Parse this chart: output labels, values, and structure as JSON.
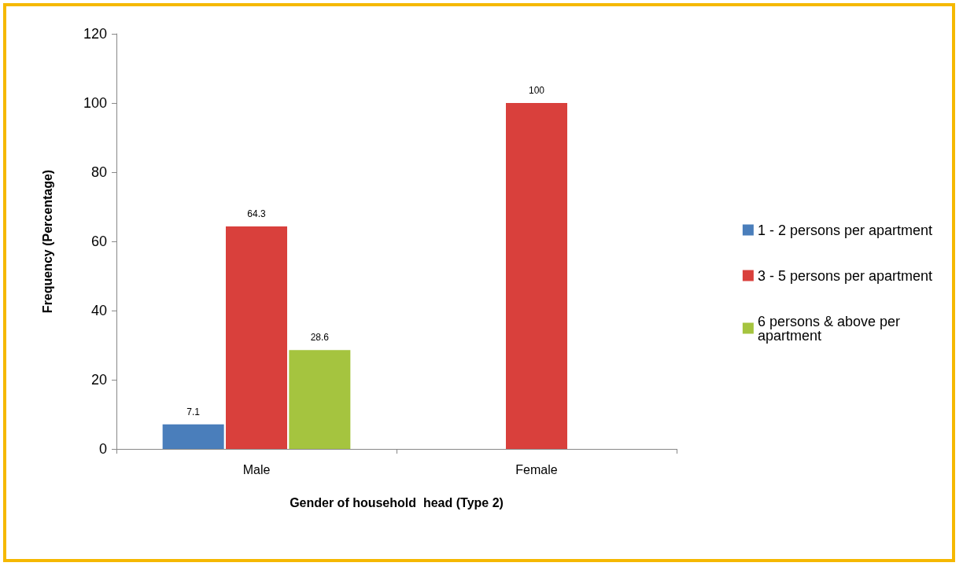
{
  "chart_data": {
    "type": "bar",
    "xlabel": "Gender of household  head (Type 2)",
    "ylabel": "Frequency (Percentage)",
    "categories": [
      "Male",
      "Female"
    ],
    "series": [
      {
        "name": "1 - 2 persons per apartment",
        "color": "#4a7ebb",
        "values": [
          7.1,
          null
        ]
      },
      {
        "name": "3 - 5 persons per apartment",
        "color": "#d9403c",
        "values": [
          64.3,
          100
        ]
      },
      {
        "name": "6 persons & above per apartment",
        "color": "#a5c43f",
        "values": [
          28.6,
          null
        ]
      }
    ],
    "ylim": [
      0,
      120
    ],
    "yticks": [
      0,
      20,
      40,
      60,
      80,
      100,
      120
    ],
    "grid": false,
    "legend": "right",
    "data_labels": true
  }
}
